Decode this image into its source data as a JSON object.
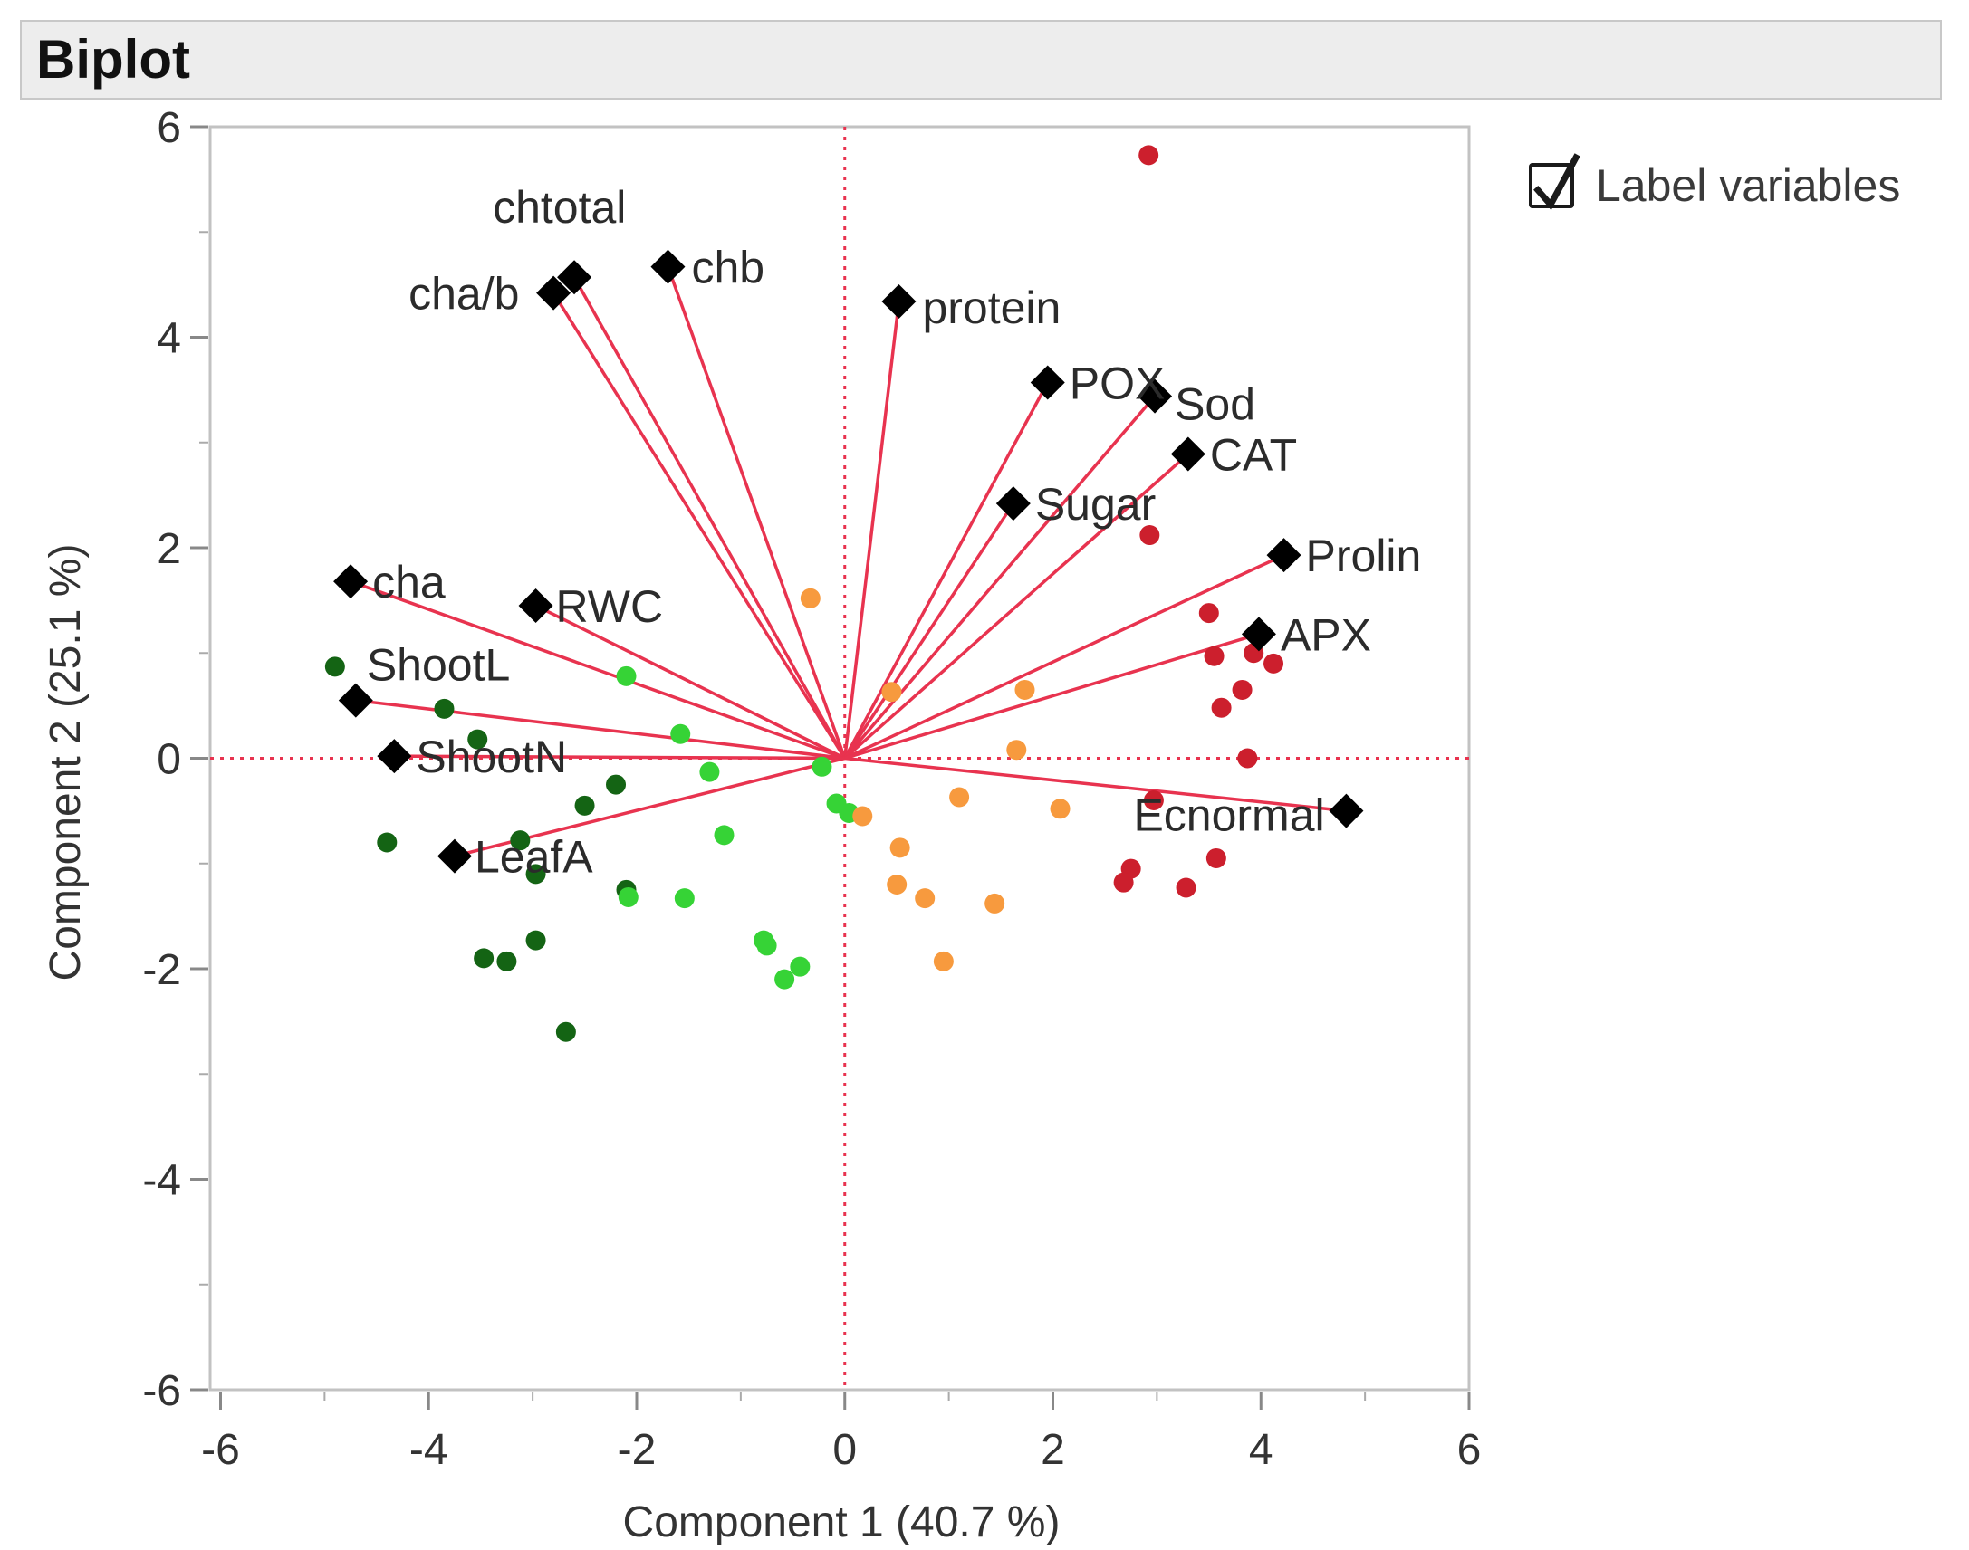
{
  "panel": {
    "title": "Biplot"
  },
  "legend": {
    "checkbox_label": "Label variables",
    "checked": true
  },
  "colors": {
    "loading_line": "#e8334f",
    "ref_line": "#e8334f",
    "loading_marker": "#000000",
    "group_dark_green": "#146414",
    "group_light_green": "#36d336",
    "group_orange": "#f79a3e",
    "group_red": "#cc1f2d"
  },
  "chart_data": {
    "type": "scatter",
    "title": "Biplot",
    "xlabel": "Component 1  (40.7 %)",
    "ylabel": "Component 2  (25.1 %)",
    "xlim": [
      -6.1,
      6.0
    ],
    "ylim": [
      -6.0,
      6.0
    ],
    "xticks": [
      -6,
      -4,
      -2,
      0,
      2,
      4,
      6
    ],
    "yticks": [
      -6,
      -4,
      -2,
      0,
      2,
      4,
      6
    ],
    "reference_lines": {
      "x": 0,
      "y": 0,
      "style": "dotted"
    },
    "loadings": [
      {
        "name": "chtotal",
        "x": -2.6,
        "y": 4.57
      },
      {
        "name": "cha/b",
        "x": -2.8,
        "y": 4.42
      },
      {
        "name": "chb",
        "x": -1.7,
        "y": 4.67
      },
      {
        "name": "protein",
        "x": 0.52,
        "y": 4.34
      },
      {
        "name": "POX",
        "x": 1.95,
        "y": 3.57
      },
      {
        "name": "Sod",
        "x": 2.98,
        "y": 3.44
      },
      {
        "name": "CAT",
        "x": 3.3,
        "y": 2.89
      },
      {
        "name": "Sugar",
        "x": 1.62,
        "y": 2.42
      },
      {
        "name": "Prolin",
        "x": 4.22,
        "y": 1.93
      },
      {
        "name": "APX",
        "x": 3.98,
        "y": 1.18
      },
      {
        "name": "cha",
        "x": -4.75,
        "y": 1.68
      },
      {
        "name": "RWC",
        "x": -2.97,
        "y": 1.45
      },
      {
        "name": "ShootL",
        "x": -4.7,
        "y": 0.55
      },
      {
        "name": "ShootN",
        "x": -4.33,
        "y": 0.02
      },
      {
        "name": "LeafA",
        "x": -3.75,
        "y": -0.93
      },
      {
        "name": "Ecnormal",
        "x": 4.82,
        "y": -0.5
      }
    ],
    "series": [
      {
        "name": "dark green group",
        "color": "#146414",
        "points": [
          [
            -4.9,
            0.87
          ],
          [
            -3.85,
            0.47
          ],
          [
            -3.53,
            0.18
          ],
          [
            -4.4,
            -0.8
          ],
          [
            -3.12,
            -0.78
          ],
          [
            -2.97,
            -1.1
          ],
          [
            -2.5,
            -0.45
          ],
          [
            -2.2,
            -0.25
          ],
          [
            -2.1,
            -1.25
          ],
          [
            -3.47,
            -1.9
          ],
          [
            -3.25,
            -1.93
          ],
          [
            -2.97,
            -1.73
          ],
          [
            -2.68,
            -2.6
          ]
        ]
      },
      {
        "name": "light green group",
        "color": "#36d336",
        "points": [
          [
            -2.1,
            0.78
          ],
          [
            -1.58,
            0.23
          ],
          [
            -1.3,
            -0.13
          ],
          [
            -1.16,
            -0.73
          ],
          [
            -2.08,
            -1.32
          ],
          [
            -1.54,
            -1.33
          ],
          [
            -0.78,
            -1.73
          ],
          [
            -0.75,
            -1.78
          ],
          [
            -0.58,
            -2.1
          ],
          [
            -0.43,
            -1.98
          ],
          [
            -0.22,
            -0.08
          ],
          [
            -0.08,
            -0.43
          ],
          [
            0.04,
            -0.52
          ]
        ]
      },
      {
        "name": "orange group",
        "color": "#f79a3e",
        "points": [
          [
            -0.33,
            1.52
          ],
          [
            0.45,
            0.63
          ],
          [
            1.73,
            0.65
          ],
          [
            1.65,
            0.08
          ],
          [
            2.07,
            -0.48
          ],
          [
            0.17,
            -0.55
          ],
          [
            1.1,
            -0.37
          ],
          [
            0.53,
            -0.85
          ],
          [
            0.5,
            -1.2
          ],
          [
            0.77,
            -1.33
          ],
          [
            1.44,
            -1.38
          ],
          [
            0.95,
            -1.93
          ]
        ]
      },
      {
        "name": "red group",
        "color": "#cc1f2d",
        "points": [
          [
            2.92,
            5.73
          ],
          [
            2.93,
            2.12
          ],
          [
            3.5,
            1.38
          ],
          [
            3.55,
            0.97
          ],
          [
            3.93,
            1.0
          ],
          [
            4.12,
            0.9
          ],
          [
            3.82,
            0.65
          ],
          [
            3.62,
            0.48
          ],
          [
            3.87,
            0.0
          ],
          [
            2.97,
            -0.4
          ],
          [
            3.57,
            -0.95
          ],
          [
            2.75,
            -1.05
          ],
          [
            2.68,
            -1.18
          ],
          [
            3.28,
            -1.23
          ]
        ]
      }
    ]
  }
}
